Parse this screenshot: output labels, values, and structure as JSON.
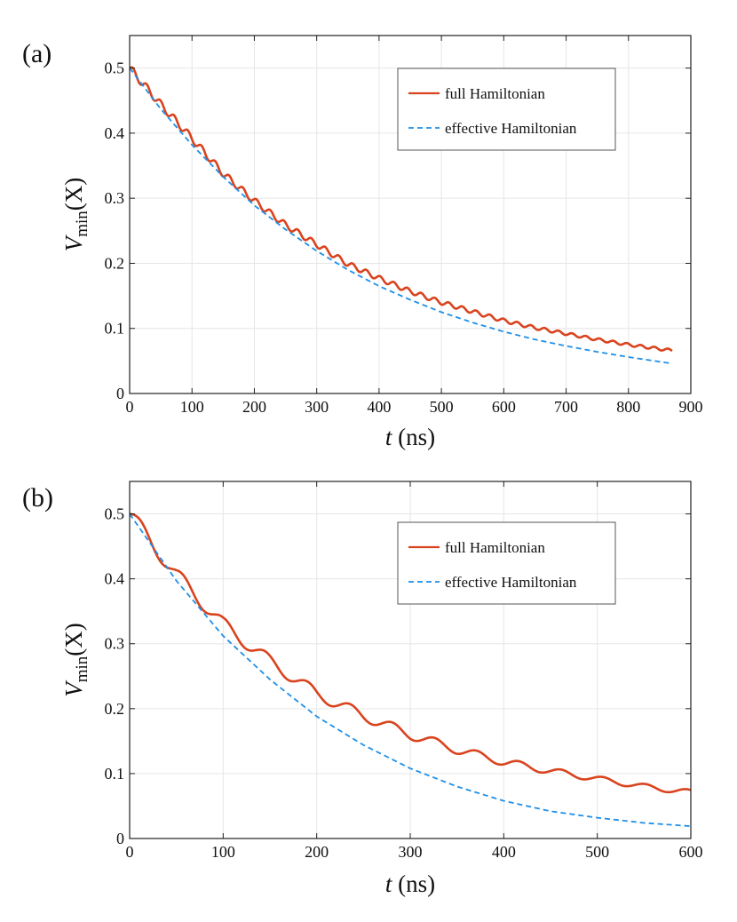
{
  "chart_data": [
    {
      "panel_label": "(a)",
      "type": "line",
      "xlabel": "t (ns)",
      "ylabel": "V_min(X)",
      "xlim": [
        0,
        900
      ],
      "ylim": [
        0,
        0.55
      ],
      "xticks": [
        0,
        100,
        200,
        300,
        400,
        500,
        600,
        700,
        800,
        900
      ],
      "yticks": [
        0,
        0.1,
        0.2,
        0.3,
        0.4,
        0.5
      ],
      "xtick_labels": [
        "0",
        "100",
        "200",
        "300",
        "400",
        "500",
        "600",
        "700",
        "800",
        "900"
      ],
      "ytick_labels": [
        "0",
        "0.1",
        "0.2",
        "0.3",
        "0.4",
        "0.5"
      ],
      "grid": true,
      "legend_position": "top-right",
      "series": [
        {
          "name": "full Hamiltonian",
          "color": "#d9431e",
          "style": "solid",
          "x": [
            0,
            50,
            100,
            150,
            200,
            250,
            300,
            350,
            400,
            450,
            500,
            550,
            600,
            650,
            700,
            750,
            800,
            870
          ],
          "values": [
            0.5,
            0.444,
            0.392,
            0.338,
            0.296,
            0.259,
            0.229,
            0.199,
            0.177,
            0.157,
            0.14,
            0.126,
            0.112,
            0.101,
            0.092,
            0.083,
            0.075,
            0.066
          ],
          "oscillation": {
            "amplitude": 0.006,
            "period_ns": 22
          }
        },
        {
          "name": "effective Hamiltonian",
          "color": "#1f8fe6",
          "style": "dashed",
          "x": [
            0,
            50,
            100,
            150,
            200,
            250,
            300,
            350,
            400,
            450,
            500,
            550,
            600,
            650,
            700,
            750,
            800,
            870
          ],
          "values": [
            0.5,
            0.437,
            0.382,
            0.333,
            0.289,
            0.252,
            0.219,
            0.19,
            0.165,
            0.144,
            0.125,
            0.109,
            0.095,
            0.083,
            0.073,
            0.064,
            0.056,
            0.046
          ]
        }
      ]
    },
    {
      "panel_label": "(b)",
      "type": "line",
      "xlabel": "t (ns)",
      "ylabel": "V_min(X)",
      "xlim": [
        0,
        600
      ],
      "ylim": [
        0,
        0.55
      ],
      "xticks": [
        0,
        100,
        200,
        300,
        400,
        500,
        600
      ],
      "yticks": [
        0,
        0.1,
        0.2,
        0.3,
        0.4,
        0.5
      ],
      "xtick_labels": [
        "0",
        "100",
        "200",
        "300",
        "400",
        "500",
        "600"
      ],
      "ytick_labels": [
        "0",
        "0.1",
        "0.2",
        "0.3",
        "0.4",
        "0.5"
      ],
      "grid": true,
      "legend_position": "top-right",
      "series": [
        {
          "name": "full Hamiltonian",
          "color": "#d9431e",
          "style": "solid",
          "x": [
            0,
            50,
            100,
            150,
            200,
            250,
            300,
            350,
            400,
            450,
            500,
            550,
            600
          ],
          "values": [
            0.5,
            0.406,
            0.33,
            0.273,
            0.223,
            0.189,
            0.16,
            0.137,
            0.118,
            0.104,
            0.092,
            0.08,
            0.071
          ],
          "oscillation": {
            "amplitude": 0.012,
            "period_ns": 45
          }
        },
        {
          "name": "effective Hamiltonian",
          "color": "#1f8fe6",
          "style": "dashed",
          "x": [
            0,
            50,
            100,
            150,
            200,
            250,
            300,
            350,
            400,
            450,
            500,
            550,
            600
          ],
          "values": [
            0.5,
            0.397,
            0.312,
            0.245,
            0.188,
            0.144,
            0.108,
            0.08,
            0.058,
            0.042,
            0.032,
            0.024,
            0.019
          ]
        }
      ]
    }
  ]
}
